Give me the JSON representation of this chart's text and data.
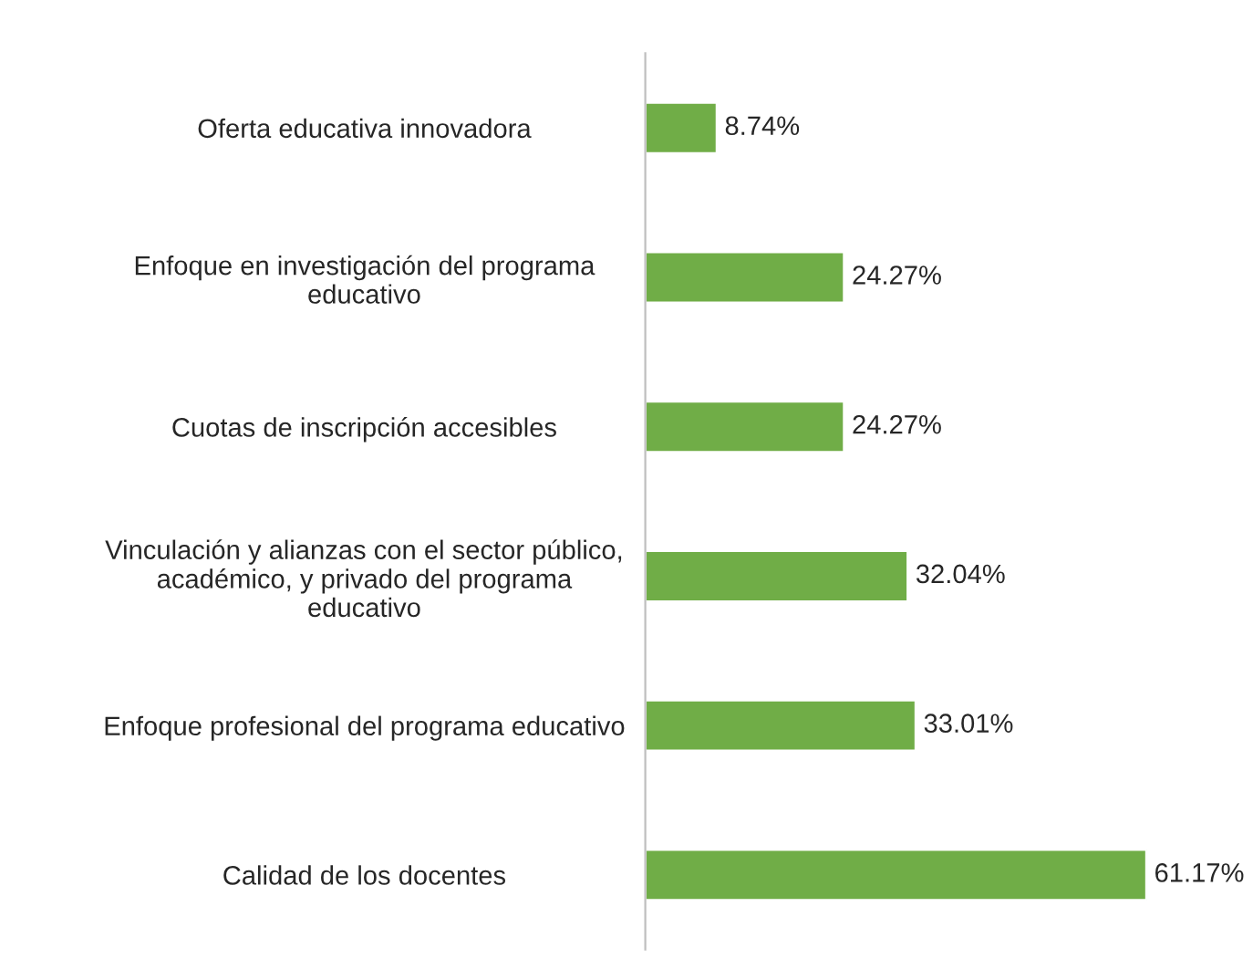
{
  "chart_data": {
    "type": "bar",
    "orientation": "horizontal",
    "categories": [
      "Oferta educativa innovadora",
      "Enfoque en investigación del programa\neducativo",
      "Cuotas de inscripción accesibles",
      "Vinculación y alianzas con el sector público,\nacadémico, y privado del programa\neducativo",
      "Enfoque profesional del programa educativo",
      "Calidad de los docentes"
    ],
    "values": [
      8.74,
      24.27,
      24.27,
      32.04,
      33.01,
      61.17
    ],
    "value_labels": [
      "8.74%",
      "24.27%",
      "24.27%",
      "32.04%",
      "33.01%",
      "61.17%"
    ],
    "color": "#70ad47",
    "grid": false,
    "legend": false
  }
}
